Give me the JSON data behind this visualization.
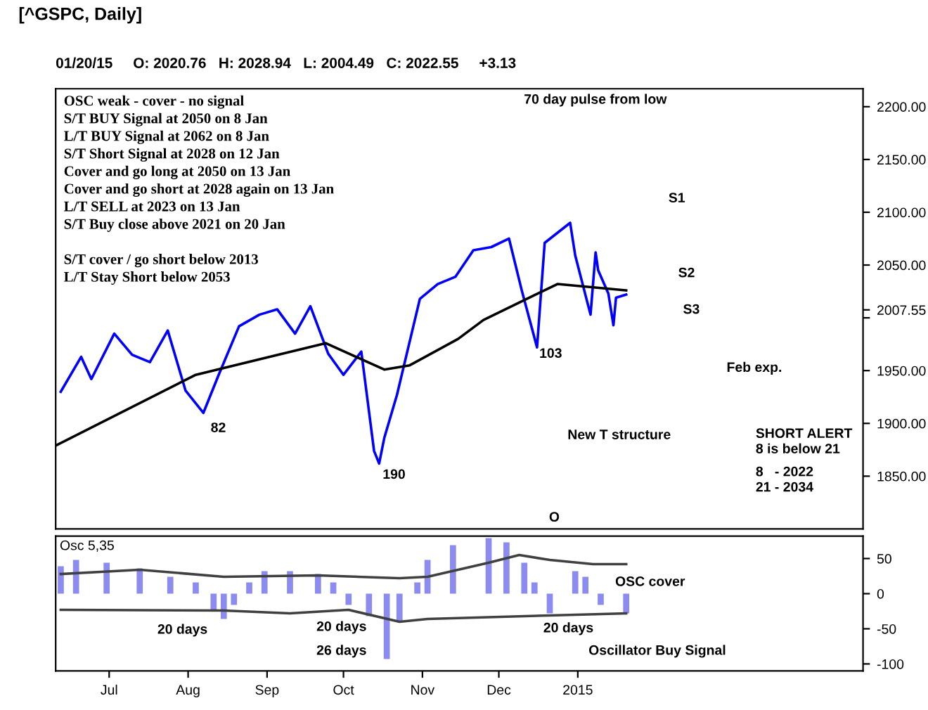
{
  "chart_data": [
    {
      "type": "line",
      "title": "[^GSPC, Daily]",
      "subtitle": "01/20/15     O: 2020.76   H: 2028.94   L: 2004.49   C: 2022.55     +3.13",
      "xlim": [
        "2014-06-10",
        "2015-04-23"
      ],
      "ylim": [
        1800,
        2217
      ],
      "yticks": [
        {
          "value": 1850,
          "label": "1850.00"
        },
        {
          "value": 1900,
          "label": "1900.00"
        },
        {
          "value": 1950,
          "label": "1950.00"
        },
        {
          "value": 2000,
          "label": null
        },
        {
          "value": 2007.55,
          "label": "2007.55"
        },
        {
          "value": 2050,
          "label": "2050.00"
        },
        {
          "value": 2100,
          "label": "2100.00"
        },
        {
          "value": 2150,
          "label": "2150.00"
        },
        {
          "value": 2200,
          "label": "2200.00"
        }
      ],
      "tick_labels": "y",
      "grid": false,
      "legend": false,
      "series": [
        {
          "color": "#0000ff",
          "x": [
            "2014-06-12",
            "2014-06-20",
            "2014-06-24",
            "2014-07-03",
            "2014-07-10",
            "2014-07-17",
            "2014-07-24",
            "2014-07-31",
            "2014-08-07",
            "2014-08-13",
            "2014-08-21",
            "2014-08-29",
            "2014-09-05",
            "2014-09-12",
            "2014-09-18",
            "2014-09-25",
            "2014-10-01",
            "2014-10-08",
            "2014-10-13",
            "2014-10-15",
            "2014-10-17",
            "2014-10-22",
            "2014-10-31",
            "2014-11-07",
            "2014-11-14",
            "2014-11-21",
            "2014-11-28",
            "2014-12-05",
            "2014-12-10",
            "2014-12-16",
            "2014-12-19",
            "2014-12-29",
            "2014-12-31",
            "2015-01-06",
            "2015-01-08",
            "2015-01-09",
            "2015-01-13",
            "2015-01-15",
            "2015-01-16",
            "2015-01-20"
          ],
          "values": [
            1930,
            1963,
            1942,
            1985,
            1965,
            1958,
            1988,
            1931,
            1910,
            1946,
            1992,
            2003,
            2008,
            1985,
            2011,
            1966,
            1946,
            1968,
            1874,
            1862,
            1886,
            1927,
            2018,
            2032,
            2039,
            2064,
            2067,
            2075,
            2026,
            1972,
            2071,
            2090,
            2059,
            2003,
            2062,
            2045,
            2023,
            1993,
            2019,
            2022
          ]
        },
        {
          "color": "#000000",
          "x": [
            "2014-06-10",
            "2014-08-04",
            "2014-09-24",
            "2014-10-17",
            "2014-10-27",
            "2014-11-15",
            "2014-11-25",
            "2014-12-24",
            "2015-01-20"
          ],
          "values": [
            1879,
            1946,
            1976,
            1951,
            1955,
            1980,
            1998,
            2032,
            2026
          ]
        }
      ],
      "annotations": [
        "OSC weak - cover - no signal",
        "S/T BUY Signal at 2050 on 8 Jan",
        "L/T BUY Signal at 2062 on 8 Jan",
        "S/T Short Signal at 2028 on 12 Jan",
        "Cover and go long at 2050 on 13 Jan",
        "Cover and go short at 2028 again on 13 Jan",
        "L/T SELL at 2023 on 13 Jan",
        "S/T Buy close above 2021 on 20 Jan",
        "S/T cover / go short below 2013",
        "L/T Stay Short below 2053",
        "70 day pulse from low",
        "82",
        "190",
        "103",
        "O",
        "S1",
        "S2",
        "S3",
        "Feb exp.",
        "New T structure",
        "SHORT ALERT",
        "8 is below 21",
        "8   - 2022",
        "21 - 2034"
      ]
    },
    {
      "type": "bar",
      "title": "Osc 5,35",
      "xlim": [
        "2014-06-10",
        "2015-04-23"
      ],
      "ylim": [
        -110,
        82
      ],
      "xticks": [
        {
          "value": "2014-07-01",
          "label": "Jul"
        },
        {
          "value": "2014-08-01",
          "label": "Aug"
        },
        {
          "value": "2014-09-01",
          "label": "Sep"
        },
        {
          "value": "2014-10-01",
          "label": "Oct"
        },
        {
          "value": "2014-11-01",
          "label": "Nov"
        },
        {
          "value": "2014-12-01",
          "label": "Dec"
        },
        {
          "value": "2015-01-01",
          "label": "2015"
        }
      ],
      "yticks": [
        {
          "value": 50,
          "label": "50"
        },
        {
          "value": 0,
          "label": "0"
        },
        {
          "value": -50,
          "label": "-50"
        },
        {
          "value": -100,
          "label": "-100"
        }
      ],
      "grid": false,
      "legend": false,
      "series": [
        {
          "color": "#8c8cf0",
          "x": [
            "2014-06-12",
            "2014-06-18",
            "2014-06-30",
            "2014-07-13",
            "2014-07-25",
            "2014-08-04",
            "2014-08-11",
            "2014-08-15",
            "2014-08-19",
            "2014-08-25",
            "2014-08-31",
            "2014-09-10",
            "2014-09-21",
            "2014-09-27",
            "2014-10-03",
            "2014-10-11",
            "2014-10-18",
            "2014-10-23",
            "2014-10-30",
            "2014-11-03",
            "2014-11-13",
            "2014-11-27",
            "2014-12-04",
            "2014-12-11",
            "2014-12-15",
            "2014-12-21",
            "2014-12-26",
            "2014-12-31",
            "2015-01-04",
            "2015-01-10",
            "2015-01-20"
          ],
          "values": [
            39,
            48,
            44,
            36,
            24,
            16,
            -24,
            -36,
            -16,
            16,
            32,
            32,
            28,
            16,
            -16,
            -32,
            -93,
            -40,
            16,
            48,
            69,
            79,
            73,
            44,
            16,
            -28,
            0,
            32,
            24,
            -16,
            -28
          ]
        },
        {
          "type": "line",
          "color": "#404040",
          "x": [
            "2014-06-12",
            "2014-07-13",
            "2014-08-15",
            "2014-09-21",
            "2014-10-23",
            "2014-11-03",
            "2014-11-27",
            "2014-12-09",
            "2014-12-21",
            "2015-01-07",
            "2015-01-20"
          ],
          "values": [
            28,
            34,
            24,
            26,
            22,
            24,
            44,
            55,
            48,
            42,
            42
          ]
        },
        {
          "type": "line",
          "color": "#404040",
          "x": [
            "2014-06-12",
            "2014-08-15",
            "2014-09-10",
            "2014-10-03",
            "2014-10-23",
            "2014-11-03",
            "2014-12-21",
            "2015-01-20"
          ],
          "values": [
            -23,
            -24,
            -28,
            -23,
            -40,
            -36,
            -31,
            -28
          ]
        }
      ],
      "annotations": [
        "20 days",
        "20 days",
        "26 days",
        "20 days",
        "Oscillator Buy Signal",
        "OSC cover"
      ]
    }
  ]
}
